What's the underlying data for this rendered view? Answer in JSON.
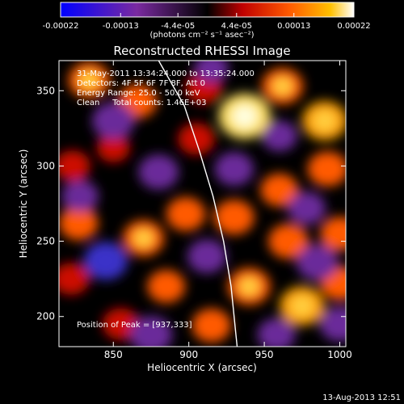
{
  "chart_data": {
    "type": "heatmap",
    "title": "Reconstructed RHESSI Image",
    "xlabel": "Heliocentric X (arcsec)",
    "ylabel": "Heliocentric Y (arcsec)",
    "xlim": [
      814,
      1004
    ],
    "ylim": [
      180,
      370
    ],
    "xticks": [
      "850",
      "900",
      "950",
      "1000"
    ],
    "yticks": [
      "200",
      "250",
      "300",
      "350"
    ],
    "colorbar": {
      "ticks": [
        "-0.00022",
        "-0.00013",
        "-4.4e-05",
        "4.4e-05",
        "0.00013",
        "0.00022"
      ],
      "range": [
        -0.00022,
        0.00022
      ],
      "unit_label": "(photons cm⁻² s⁻¹ asec⁻²)"
    },
    "annotations": [
      "31-May-2011 13:34:24.000 to 13:35:24.000",
      "Detectors: 4F 5F 6F 7F 8F, Att 0",
      "Energy Range: 25.0 - 50.0 keV",
      "Clean     Total counts: 1.46E+03"
    ],
    "peak_label": "Position of Peak = [937,333]",
    "peak": [
      937,
      333
    ],
    "limb_curve": [
      [
        880,
        370
      ],
      [
        897,
        340
      ],
      [
        907,
        310
      ],
      [
        916,
        280
      ],
      [
        923,
        250
      ],
      [
        928,
        220
      ],
      [
        931,
        190
      ],
      [
        932,
        180
      ]
    ],
    "sources": [
      {
        "x": 834,
        "y": 357,
        "v": 0.00013
      },
      {
        "x": 866,
        "y": 343,
        "v": 0.00011
      },
      {
        "x": 910,
        "y": 352,
        "v": 9e-05
      },
      {
        "x": 962,
        "y": 353,
        "v": 0.00013
      },
      {
        "x": 990,
        "y": 330,
        "v": 0.00016
      },
      {
        "x": 937,
        "y": 333,
        "v": 0.00022
      },
      {
        "x": 905,
        "y": 318,
        "v": 9e-05
      },
      {
        "x": 850,
        "y": 312,
        "v": 6e-05
      },
      {
        "x": 823,
        "y": 300,
        "v": 8e-05
      },
      {
        "x": 992,
        "y": 298,
        "v": 0.00012
      },
      {
        "x": 960,
        "y": 284,
        "v": 0.0001
      },
      {
        "x": 898,
        "y": 268,
        "v": 0.00011
      },
      {
        "x": 930,
        "y": 266,
        "v": 0.00012
      },
      {
        "x": 870,
        "y": 252,
        "v": 0.00013
      },
      {
        "x": 827,
        "y": 262,
        "v": 0.00011
      },
      {
        "x": 966,
        "y": 250,
        "v": 0.00012
      },
      {
        "x": 1000,
        "y": 255,
        "v": 0.00011
      },
      {
        "x": 885,
        "y": 220,
        "v": 0.0001
      },
      {
        "x": 940,
        "y": 220,
        "v": 0.00014
      },
      {
        "x": 975,
        "y": 207,
        "v": 0.00016
      },
      {
        "x": 1000,
        "y": 222,
        "v": 0.00011
      },
      {
        "x": 822,
        "y": 225,
        "v": 9e-05
      },
      {
        "x": 855,
        "y": 195,
        "v": 9e-05
      },
      {
        "x": 915,
        "y": 194,
        "v": 0.00011
      },
      {
        "x": 880,
        "y": 296,
        "v": -0.00012
      },
      {
        "x": 850,
        "y": 330,
        "v": -0.00014
      },
      {
        "x": 930,
        "y": 298,
        "v": -0.00011
      },
      {
        "x": 845,
        "y": 237,
        "v": -0.00015
      },
      {
        "x": 985,
        "y": 236,
        "v": -0.00013
      },
      {
        "x": 875,
        "y": 188,
        "v": -0.00014
      },
      {
        "x": 912,
        "y": 240,
        "v": -0.00011
      },
      {
        "x": 958,
        "y": 188,
        "v": -0.0001
      },
      {
        "x": 1000,
        "y": 195,
        "v": -0.00012
      },
      {
        "x": 978,
        "y": 272,
        "v": -0.0001
      },
      {
        "x": 960,
        "y": 320,
        "v": -8e-05
      },
      {
        "x": 828,
        "y": 280,
        "v": -9e-05
      },
      {
        "x": 915,
        "y": 365,
        "v": -7e-05
      }
    ]
  },
  "footer": {
    "timestamp": "13-Aug-2013 12:51"
  }
}
